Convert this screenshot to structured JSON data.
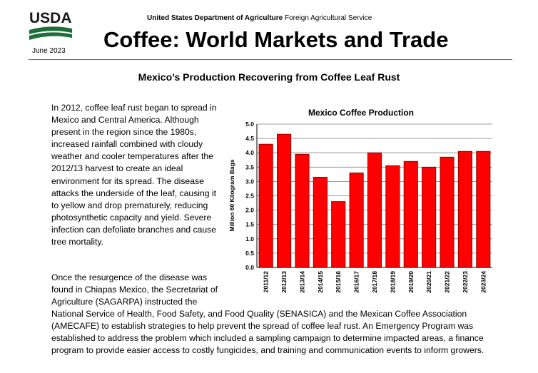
{
  "header": {
    "logo_text": "USDA",
    "agency_bold": "United States Department of Agriculture",
    "agency_rest": " Foreign Agricultural Service",
    "date": "June 2023",
    "title": "Coffee: World Markets and Trade"
  },
  "section": {
    "title": "Mexico’s Production Recovering from Coffee Leaf Rust"
  },
  "body": {
    "p1": "In 2012, coffee leaf rust began to spread in Mexico and Central America. Although present in the region since the 1980s, increased rainfall combined with cloudy weather and cooler temperatures after the 2012/13 harvest to create an ideal environment for its spread.  The disease attacks the underside of the leaf, causing it to yellow and drop prematurely, reducing photosynthetic capacity and yield.  Severe infection can defoliate branches and cause tree mortality.",
    "p2_part1": "Once the resurgence of the disease was found in Chiapas Mexico, the Secretariat of Agriculture (SAGARPA) instructed the",
    "p2_part2": "National Service of Health, Food Safety, and Food Quality (SENASICA) and the Mexican Coffee Association (AMECAFE) to establish strategies to help prevent the spread of coffee leaf rust.  An Emergency Program was established to address the problem which included a sampling campaign to determine impacted areas, a finance program to provide easier access to costly fungicides, and training and communication events to inform growers."
  },
  "chart_data": {
    "type": "bar",
    "title": "Mexico Coffee Production",
    "ylabel": "Million 60 Kilogram Bags",
    "xlabel": "",
    "categories": [
      "2011/12",
      "2012/13",
      "2013/14",
      "2014/15",
      "2015/16",
      "2016/17",
      "2017/18",
      "2018/19",
      "2019/20",
      "2020/21",
      "2021/22",
      "2022/23",
      "2023/24"
    ],
    "values": [
      4.3,
      4.65,
      3.95,
      3.15,
      2.3,
      3.3,
      4.0,
      3.55,
      3.7,
      3.5,
      3.85,
      4.05,
      4.05
    ],
    "ylim": [
      0,
      5
    ],
    "yticks": [
      "0.0",
      "0.5",
      "1.0",
      "1.5",
      "2.0",
      "2.5",
      "3.0",
      "3.5",
      "4.0",
      "4.5",
      "5.0"
    ],
    "grid": true,
    "bar_color": "#ff0000",
    "bar_edge": "#7a0000"
  }
}
